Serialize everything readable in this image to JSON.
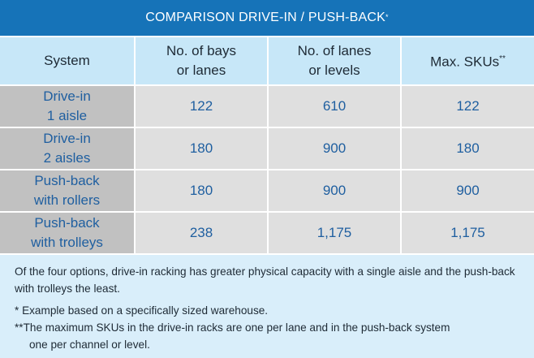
{
  "title": {
    "text": "COMPARISON DRIVE-IN / PUSH-BACK",
    "marker": "*"
  },
  "table": {
    "headers": [
      {
        "line1": "System",
        "line2": "",
        "sup": ""
      },
      {
        "line1": "No. of bays",
        "line2": "or lanes",
        "sup": ""
      },
      {
        "line1": "No. of lanes",
        "line2": "or levels",
        "sup": ""
      },
      {
        "line1": "Max. SKUs",
        "line2": "",
        "sup": "**"
      }
    ],
    "rows": [
      {
        "system_l1": "Drive-in",
        "system_l2": "1 aisle",
        "bays": "122",
        "lanes": "610",
        "skus": "122"
      },
      {
        "system_l1": "Drive-in",
        "system_l2": "2 aisles",
        "bays": "180",
        "lanes": "900",
        "skus": "180"
      },
      {
        "system_l1": "Push-back",
        "system_l2": "with rollers",
        "bays": "180",
        "lanes": "900",
        "skus": "900"
      },
      {
        "system_l1": "Push-back",
        "system_l2": "with trolleys",
        "bays": "238",
        "lanes": "1,175",
        "skus": "1,175"
      }
    ]
  },
  "notes": {
    "summary": "Of the four options, drive-in racking has greater physical capacity with a single aisle and the push-back with trolleys the least.",
    "footnote1": "* Example based on a specifically sized warehouse.",
    "footnote2_l1": "**The maximum SKUs in the drive-in racks are one per lane and in the push-back system",
    "footnote2_l2": "one per channel or level."
  },
  "colors": {
    "title_bg": "#1673b8",
    "header_bg": "#c7e7f8",
    "cell_bg": "#dfdfdf",
    "system_cell_bg": "#c1c1c1",
    "value_text": "#1f5fa0",
    "page_bg": "#d9eefa"
  }
}
